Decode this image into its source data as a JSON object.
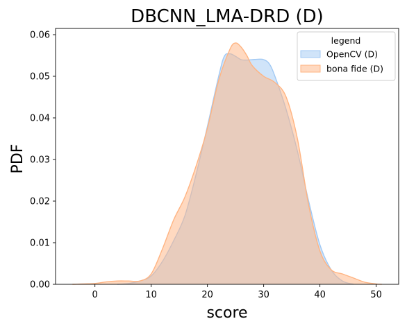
{
  "chart_data": {
    "type": "area",
    "title": "DBCNN_LMA-DRD (D)",
    "xlabel": "score",
    "ylabel": "PDF",
    "xlim": [
      -7,
      54
    ],
    "ylim": [
      0,
      0.0615
    ],
    "xticks": [
      0,
      10,
      20,
      30,
      40,
      50
    ],
    "yticks": [
      0.0,
      0.01,
      0.02,
      0.03,
      0.04,
      0.05,
      0.06
    ],
    "ytick_labels": [
      "0.00",
      "0.01",
      "0.02",
      "0.03",
      "0.04",
      "0.05",
      "0.06"
    ],
    "grid": false,
    "legend": {
      "title": "legend",
      "placement": "top-right"
    },
    "series": [
      {
        "name": "OpenCV (D)",
        "color": "#a1c9f4",
        "x": [
          4,
          6,
          8,
          10,
          12,
          14,
          16,
          18,
          20,
          22,
          23,
          24,
          25,
          26,
          27,
          28,
          29,
          30,
          31,
          32,
          34,
          36,
          38,
          40,
          42,
          44,
          46
        ],
        "y": [
          0.0,
          0.0002,
          0.0008,
          0.002,
          0.0055,
          0.0105,
          0.0165,
          0.0265,
          0.038,
          0.05,
          0.0548,
          0.0554,
          0.0548,
          0.054,
          0.0539,
          0.054,
          0.0541,
          0.054,
          0.053,
          0.05,
          0.042,
          0.032,
          0.02,
          0.0095,
          0.0035,
          0.0008,
          0.0
        ]
      },
      {
        "name": "bona fide (D)",
        "color": "#ffb482",
        "x": [
          -4,
          0,
          2,
          4,
          6,
          8,
          10,
          12,
          14,
          16,
          18,
          20,
          22,
          24,
          25,
          26,
          27,
          28,
          30,
          32,
          34,
          36,
          38,
          40,
          42,
          44,
          46,
          48,
          50,
          51
        ],
        "y": [
          0.0,
          0.0002,
          0.0006,
          0.0008,
          0.0008,
          0.0008,
          0.0025,
          0.0085,
          0.0155,
          0.021,
          0.0285,
          0.0375,
          0.049,
          0.0565,
          0.058,
          0.057,
          0.055,
          0.0525,
          0.05,
          0.0485,
          0.045,
          0.035,
          0.019,
          0.008,
          0.0035,
          0.0025,
          0.0015,
          0.0005,
          0.0001,
          0.0
        ]
      }
    ]
  }
}
